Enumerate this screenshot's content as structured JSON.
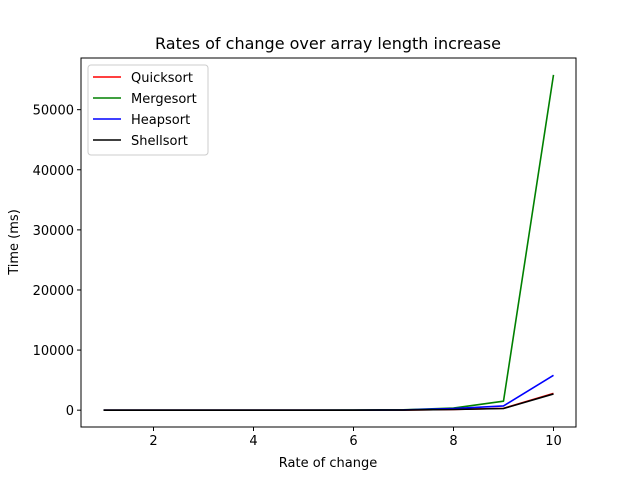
{
  "chart_data": {
    "type": "line",
    "title": "Rates of change over array length increase",
    "xlabel": "Rate of change",
    "ylabel": "Time (ms)",
    "x": [
      1,
      2,
      3,
      4,
      5,
      6,
      7,
      8,
      9,
      10
    ],
    "xlim": [
      0.55,
      10.45
    ],
    "ylim": [
      -2800,
      58600
    ],
    "xticks": [
      2,
      4,
      6,
      8,
      10
    ],
    "yticks": [
      0,
      10000,
      20000,
      30000,
      40000,
      50000
    ],
    "legend_position": "top-left",
    "grid": false,
    "series": [
      {
        "name": "Quicksort",
        "color": "#ff0000",
        "values": [
          0,
          0,
          0,
          0,
          1,
          4,
          22,
          120,
          300,
          2800
        ]
      },
      {
        "name": "Mergesort",
        "color": "#008000",
        "values": [
          0,
          0,
          0,
          0,
          2,
          10,
          60,
          350,
          1500,
          55800
        ]
      },
      {
        "name": "Heapsort",
        "color": "#0000ff",
        "values": [
          0,
          0,
          0,
          0,
          2,
          6,
          40,
          260,
          700,
          5800
        ]
      },
      {
        "name": "Shellsort",
        "color": "#000000",
        "values": [
          0,
          0,
          0,
          0,
          1,
          3,
          20,
          110,
          280,
          2700
        ]
      }
    ]
  }
}
